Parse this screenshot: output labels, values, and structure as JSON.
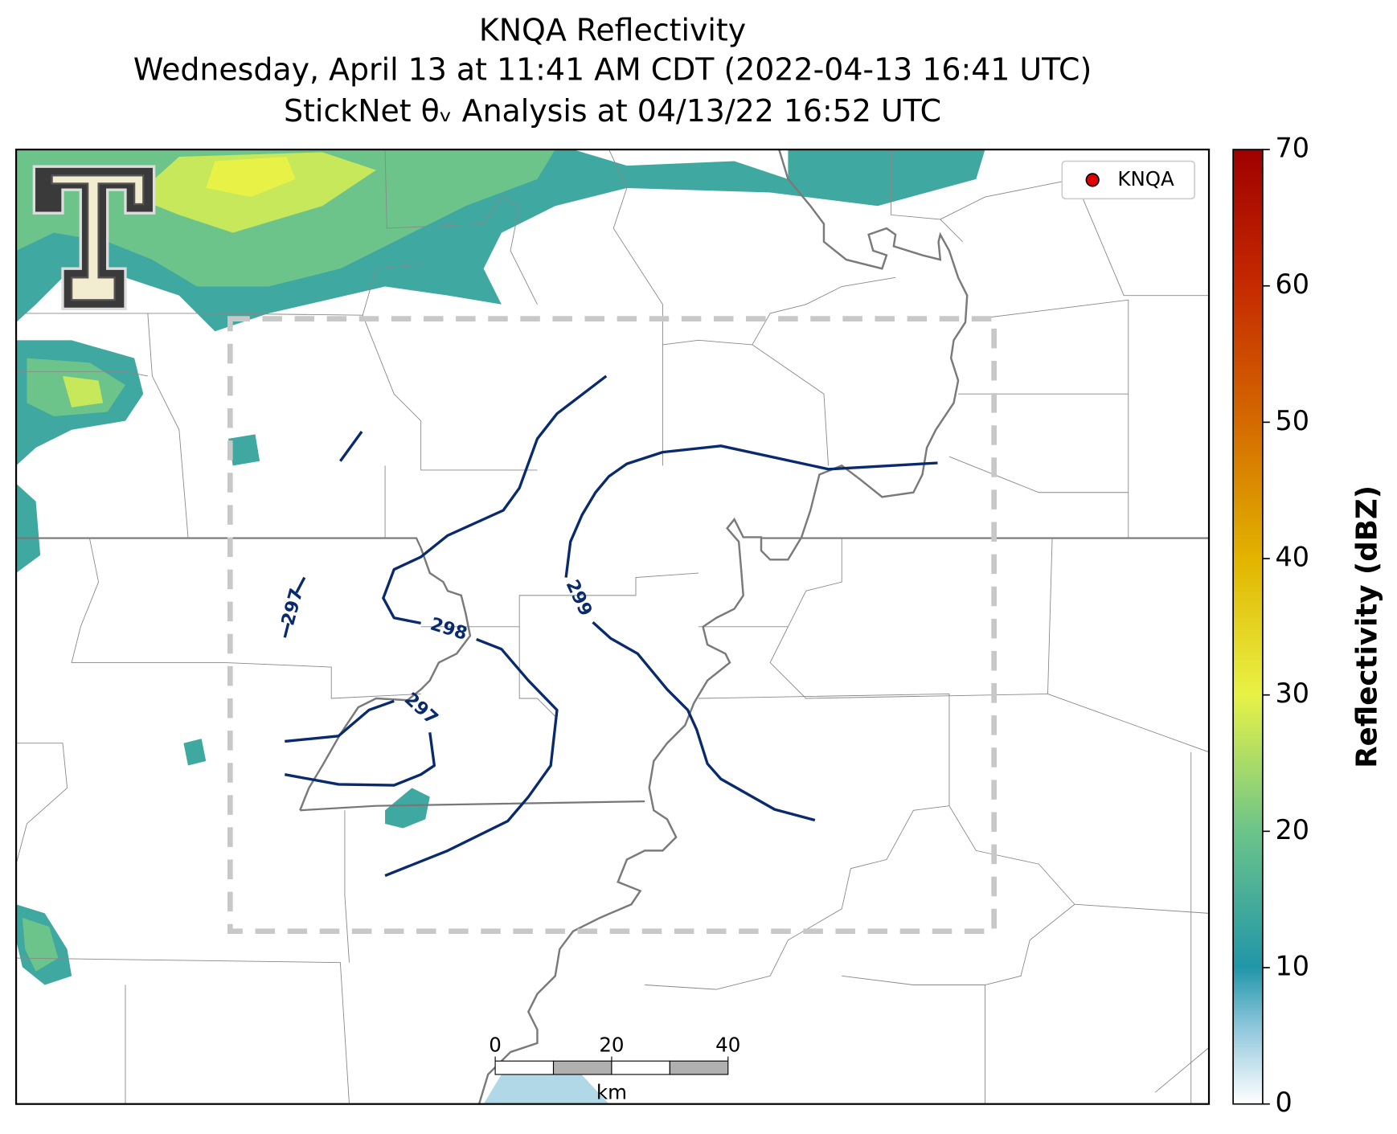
{
  "header": {
    "title_lines": [
      "KNQA Reflectivity",
      "Wednesday, April 13 at 11:41 AM CDT (2022-04-13 16:41 UTC)",
      "StickNet θᵥ Analysis at 04/13/22 16:52 UTC"
    ]
  },
  "legend": {
    "label": "KNQA",
    "color": "#e00000"
  },
  "contours": [
    {
      "label": "297"
    },
    {
      "label": "298"
    },
    {
      "label": "299"
    },
    {
      "label": "297"
    }
  ],
  "colorbar": {
    "label": "Reflectivity (dBZ)",
    "lim": [
      0,
      70
    ],
    "ticks": [
      0,
      10,
      20,
      30,
      40,
      50,
      60,
      70
    ]
  },
  "scale_bar": {
    "ticks": [
      0,
      20,
      40
    ],
    "unit": "km"
  }
}
